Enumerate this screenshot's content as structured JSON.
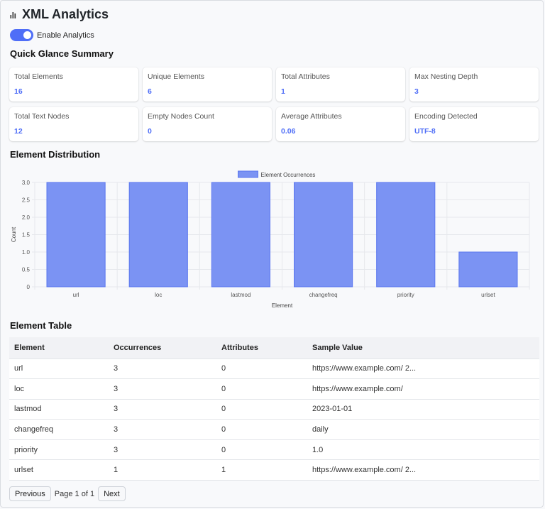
{
  "app": {
    "title": "XML Analytics"
  },
  "toggle": {
    "label": "Enable Analytics",
    "enabled": true,
    "accent": "#4f6ef7"
  },
  "summary": {
    "title": "Quick Glance Summary",
    "cards": [
      {
        "label": "Total Elements",
        "value": "16"
      },
      {
        "label": "Unique Elements",
        "value": "6"
      },
      {
        "label": "Total Attributes",
        "value": "1"
      },
      {
        "label": "Max Nesting Depth",
        "value": "3"
      },
      {
        "label": "Total Text Nodes",
        "value": "12"
      },
      {
        "label": "Empty Nodes Count",
        "value": "0"
      },
      {
        "label": "Average Attributes",
        "value": "0.06"
      },
      {
        "label": "Encoding Detected",
        "value": "UTF-8"
      }
    ]
  },
  "distribution": {
    "title": "Element Distribution"
  },
  "chart_data": {
    "type": "bar",
    "categories": [
      "url",
      "loc",
      "lastmod",
      "changefreq",
      "priority",
      "urlset"
    ],
    "series": [
      {
        "name": "Element Occurrences",
        "values": [
          3,
          3,
          3,
          3,
          3,
          1
        ],
        "color": "#7b93f3"
      }
    ],
    "xlabel": "Element",
    "ylabel": "Count",
    "ylim": [
      0,
      3
    ],
    "yticks": [
      "0",
      "0.5",
      "1.0",
      "1.5",
      "2.0",
      "2.5",
      "3.0"
    ],
    "grid": true,
    "legend": "top-center"
  },
  "table": {
    "title": "Element Table",
    "columns": [
      "Element",
      "Occurrences",
      "Attributes",
      "Sample Value"
    ],
    "rows": [
      [
        "url",
        "3",
        "0",
        "https://www.example.com/ 2..."
      ],
      [
        "loc",
        "3",
        "0",
        "https://www.example.com/"
      ],
      [
        "lastmod",
        "3",
        "0",
        "2023-01-01"
      ],
      [
        "changefreq",
        "3",
        "0",
        "daily"
      ],
      [
        "priority",
        "3",
        "0",
        "1.0"
      ],
      [
        "urlset",
        "1",
        "1",
        "https://www.example.com/ 2..."
      ]
    ]
  },
  "pagination": {
    "previous": "Previous",
    "status": "Page 1 of 1",
    "next": "Next"
  }
}
